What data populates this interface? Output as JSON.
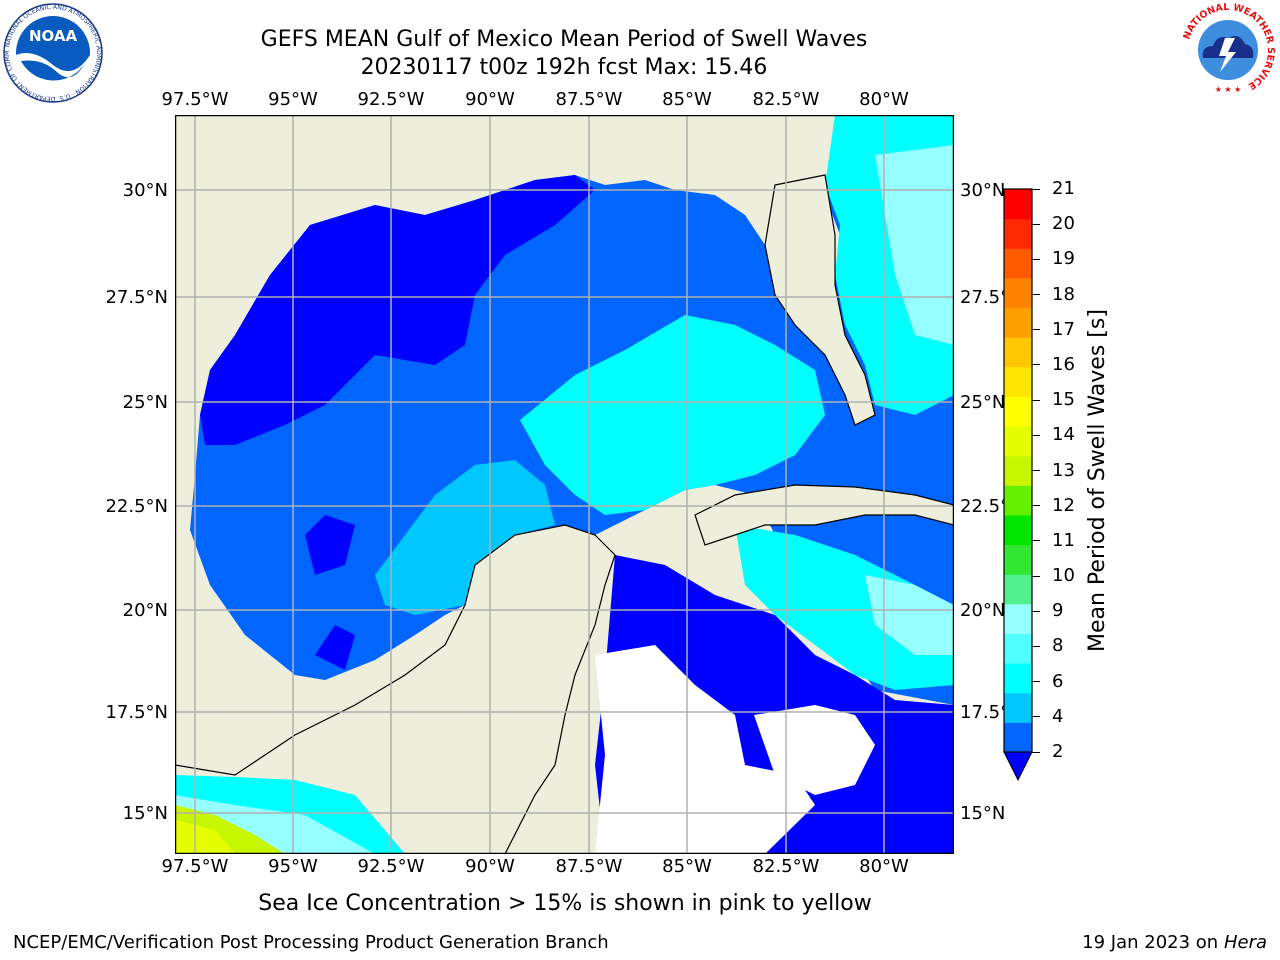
{
  "header": {
    "title_line1": "GEFS MEAN Gulf of Mexico Mean Period of Swell Waves",
    "title_line2": "20230117 t00z 192h fcst   Max: 15.46"
  },
  "logos": {
    "left": {
      "name": "NOAA",
      "text": "NOAA",
      "ring_text": "NATIONAL OCEANIC AND ATMOSPHERIC ADMINISTRATION · U.S. DEPARTMENT OF COMMERCE"
    },
    "right": {
      "name": "National Weather Service",
      "ring_text": "NATIONAL WEATHER SERVICE"
    }
  },
  "map": {
    "lon_labels": [
      "97.5°W",
      "95°W",
      "92.5°W",
      "90°W",
      "87.5°W",
      "85°W",
      "82.5°W",
      "80°W"
    ],
    "lat_labels": [
      "30°N",
      "27.5°N",
      "25°N",
      "22.5°N",
      "20°N",
      "17.5°N",
      "15°N"
    ],
    "lon_range": [
      -98,
      -78.3
    ],
    "lat_range": [
      14,
      31.8
    ],
    "land_color": "#eeeedc",
    "grid_color": "#b0b0b0"
  },
  "colorbar": {
    "title": "Mean Period of Swell Waves [s]",
    "tick_labels": [
      "2",
      "4",
      "6",
      "8",
      "9",
      "10",
      "11",
      "12",
      "13",
      "14",
      "15",
      "16",
      "17",
      "18",
      "19",
      "20",
      "21"
    ],
    "colors": [
      "#0066ff",
      "#00c8ff",
      "#00ffff",
      "#50ffff",
      "#96ffff",
      "#50f08c",
      "#32e632",
      "#00e600",
      "#64f000",
      "#c8f500",
      "#e6ff00",
      "#ffff00",
      "#ffe600",
      "#ffc800",
      "#ffa000",
      "#ff8200",
      "#ff5a00",
      "#ff2800",
      "#ff0000"
    ],
    "extend_min_color": "#0000ff"
  },
  "footer": {
    "note": "Sea Ice Concentration > 15% is shown in pink to yellow",
    "credit_left": "NCEP/EMC/Verification Post Processing Product Generation Branch",
    "credit_date": "19 Jan 2023 on ",
    "credit_host": "Hera"
  }
}
